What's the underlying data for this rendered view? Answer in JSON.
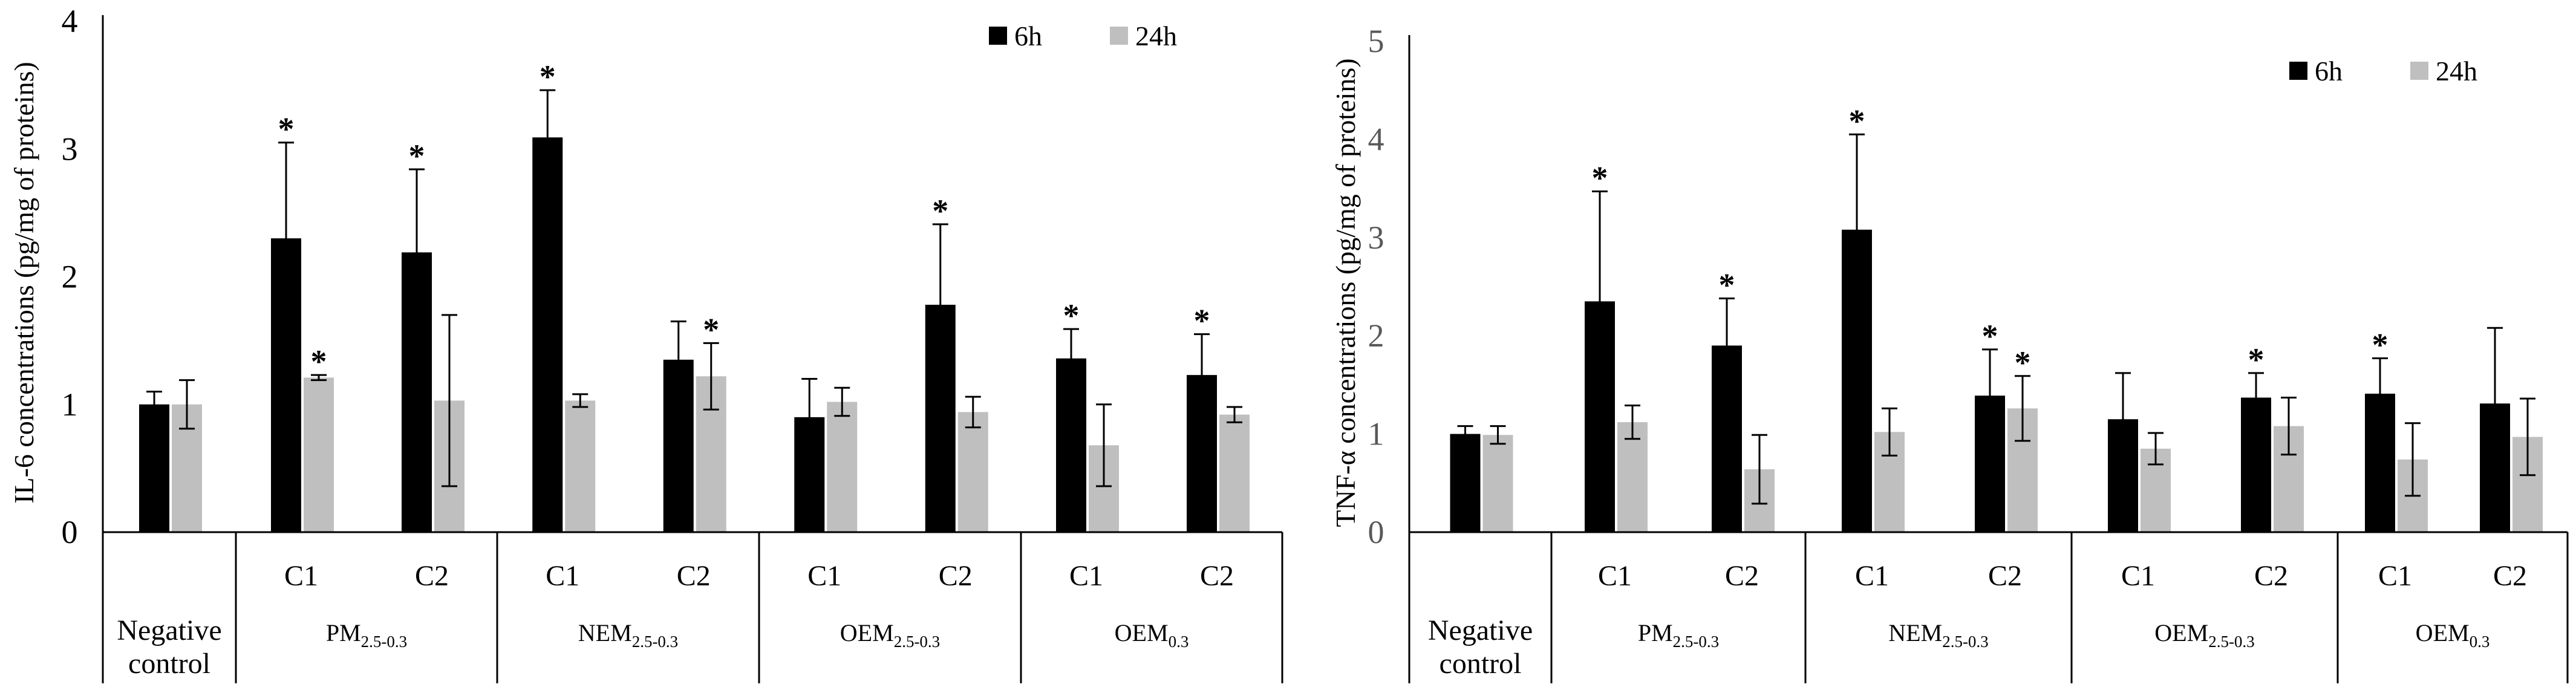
{
  "chart_data": [
    {
      "type": "bar",
      "ylabel": "IL-6 concentrations (pg/mg of proteins)",
      "ylim": [
        0,
        4
      ],
      "yticks": [
        "0",
        "1",
        "2",
        "3",
        "4"
      ],
      "legend": {
        "position": "top-right",
        "entries": [
          "6h",
          "24h"
        ]
      },
      "series": [
        {
          "name": "6h",
          "color": "#000000",
          "values": [
            1.0,
            2.3,
            2.19,
            3.09,
            1.35,
            0.9,
            1.78,
            1.36,
            1.23
          ],
          "errors": [
            0.1,
            0.75,
            0.65,
            0.37,
            0.3,
            0.3,
            0.63,
            0.23,
            0.32
          ],
          "significant": [
            false,
            true,
            true,
            true,
            false,
            false,
            true,
            true,
            true
          ]
        },
        {
          "name": "24h",
          "color": "#bfbfbf",
          "values": [
            1.0,
            1.21,
            1.03,
            1.03,
            1.22,
            1.02,
            0.94,
            0.68,
            0.92
          ],
          "errors": [
            0.19,
            0.02,
            0.67,
            0.05,
            0.26,
            0.11,
            0.12,
            0.32,
            0.06
          ],
          "significant": [
            false,
            true,
            false,
            false,
            true,
            false,
            false,
            false,
            false
          ]
        }
      ]
    },
    {
      "type": "bar",
      "ylabel": "TNF-α concentrations (pg/mg of proteins)",
      "ylim": [
        0,
        5
      ],
      "yticks": [
        "0",
        "1",
        "2",
        "3",
        "4",
        "5"
      ],
      "legend": {
        "position": "top-right",
        "entries": [
          "6h",
          "24h"
        ]
      },
      "series": [
        {
          "name": "6h",
          "color": "#000000",
          "values": [
            1.0,
            2.35,
            1.9,
            3.08,
            1.39,
            1.15,
            1.37,
            1.41,
            1.31
          ],
          "errors": [
            0.08,
            1.12,
            0.48,
            0.97,
            0.47,
            0.47,
            0.25,
            0.36,
            0.77
          ],
          "significant": [
            false,
            true,
            true,
            true,
            true,
            false,
            true,
            true,
            false
          ]
        },
        {
          "name": "24h",
          "color": "#bfbfbf",
          "values": [
            0.99,
            1.12,
            0.64,
            1.02,
            1.26,
            0.85,
            1.08,
            0.74,
            0.97
          ],
          "errors": [
            0.09,
            0.17,
            0.35,
            0.24,
            0.33,
            0.16,
            0.29,
            0.37,
            0.39
          ],
          "significant": [
            false,
            false,
            false,
            false,
            true,
            false,
            false,
            false,
            false
          ]
        }
      ]
    }
  ],
  "axis_groups": {
    "negative_control": [
      "Negative",
      "control"
    ],
    "cat_labels": [
      "C1",
      "C2",
      "C1",
      "C2",
      "C1",
      "C2",
      "C1",
      "C2"
    ],
    "groups": [
      {
        "base": "PM",
        "sub": "2.5-0.3"
      },
      {
        "base": "NEM",
        "sub": "2.5-0.3"
      },
      {
        "base": "OEM",
        "sub": "2.5-0.3"
      },
      {
        "base": "OEM",
        "sub": "0.3"
      }
    ],
    "significance_marker": "*"
  }
}
